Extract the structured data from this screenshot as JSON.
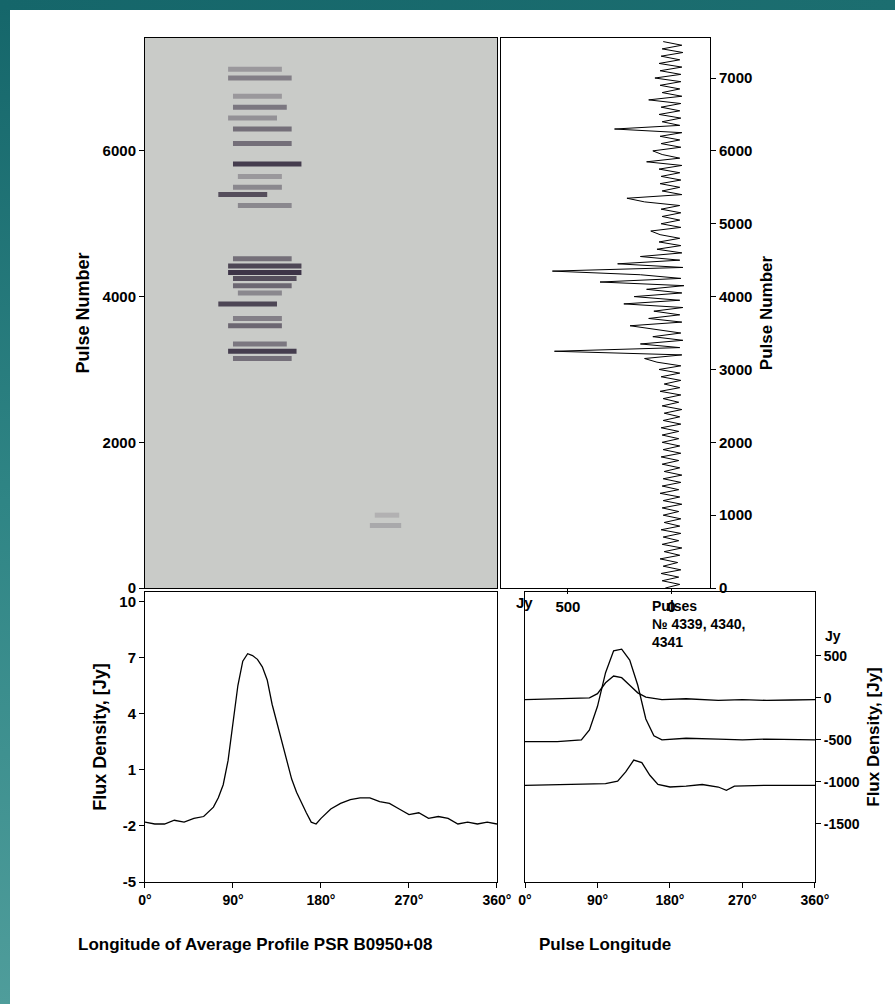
{
  "chart_data": [
    {
      "type": "pulse_stack",
      "ylabel": "Pulse Number",
      "xlim": [
        0,
        360
      ],
      "ylim": [
        0,
        7550
      ],
      "yticks": [
        0,
        2000,
        4000,
        6000
      ],
      "tick_labels": "y",
      "color": "#2e2438",
      "streaks": [
        {
          "pulse": 7120,
          "from": 85,
          "to": 140,
          "intensity": 0.3
        },
        {
          "pulse": 7000,
          "from": 85,
          "to": 150,
          "intensity": 0.45
        },
        {
          "pulse": 6750,
          "from": 90,
          "to": 140,
          "intensity": 0.3
        },
        {
          "pulse": 6600,
          "from": 90,
          "to": 145,
          "intensity": 0.5
        },
        {
          "pulse": 6450,
          "from": 85,
          "to": 135,
          "intensity": 0.35
        },
        {
          "pulse": 6300,
          "from": 90,
          "to": 150,
          "intensity": 0.55
        },
        {
          "pulse": 6100,
          "from": 90,
          "to": 150,
          "intensity": 0.55
        },
        {
          "pulse": 5820,
          "from": 90,
          "to": 160,
          "intensity": 0.85
        },
        {
          "pulse": 5650,
          "from": 95,
          "to": 140,
          "intensity": 0.3
        },
        {
          "pulse": 5500,
          "from": 90,
          "to": 140,
          "intensity": 0.4
        },
        {
          "pulse": 5400,
          "from": 75,
          "to": 125,
          "intensity": 0.75
        },
        {
          "pulse": 5250,
          "from": 95,
          "to": 150,
          "intensity": 0.4
        },
        {
          "pulse": 4520,
          "from": 90,
          "to": 150,
          "intensity": 0.55
        },
        {
          "pulse": 4420,
          "from": 85,
          "to": 160,
          "intensity": 0.8
        },
        {
          "pulse": 4330,
          "from": 85,
          "to": 160,
          "intensity": 0.9
        },
        {
          "pulse": 4250,
          "from": 90,
          "to": 155,
          "intensity": 0.75
        },
        {
          "pulse": 4150,
          "from": 90,
          "to": 150,
          "intensity": 0.6
        },
        {
          "pulse": 4050,
          "from": 95,
          "to": 140,
          "intensity": 0.4
        },
        {
          "pulse": 3900,
          "from": 75,
          "to": 135,
          "intensity": 0.8
        },
        {
          "pulse": 3700,
          "from": 90,
          "to": 140,
          "intensity": 0.45
        },
        {
          "pulse": 3600,
          "from": 85,
          "to": 140,
          "intensity": 0.6
        },
        {
          "pulse": 3350,
          "from": 90,
          "to": 145,
          "intensity": 0.5
        },
        {
          "pulse": 3250,
          "from": 85,
          "to": 155,
          "intensity": 0.85
        },
        {
          "pulse": 3150,
          "from": 90,
          "to": 150,
          "intensity": 0.55
        },
        {
          "pulse": 1000,
          "from": 235,
          "to": 260,
          "intensity": 0.15
        },
        {
          "pulse": 860,
          "from": 230,
          "to": 262,
          "intensity": 0.2
        }
      ]
    },
    {
      "type": "line",
      "orientation": "horizontal",
      "ylabel": "Pulse Number",
      "xlabel": "Jy",
      "xlim": [
        823,
        -186
      ],
      "xticks": [
        500,
        0
      ],
      "ylim": [
        0,
        7550
      ],
      "yticks": [
        0,
        1000,
        2000,
        3000,
        4000,
        5000,
        6000,
        7000
      ],
      "color": "#000000",
      "pulse_numbers": [
        0,
        50,
        100,
        150,
        200,
        250,
        300,
        350,
        400,
        450,
        500,
        550,
        600,
        650,
        700,
        750,
        800,
        850,
        900,
        950,
        1000,
        1050,
        1100,
        1150,
        1200,
        1250,
        1300,
        1350,
        1400,
        1450,
        1500,
        1550,
        1600,
        1650,
        1700,
        1750,
        1800,
        1850,
        1900,
        1950,
        2000,
        2050,
        2100,
        2150,
        2200,
        2250,
        2300,
        2350,
        2400,
        2450,
        2500,
        2550,
        2600,
        2650,
        2700,
        2750,
        2800,
        2850,
        2900,
        2950,
        3000,
        3050,
        3100,
        3150,
        3200,
        3250,
        3300,
        3350,
        3400,
        3450,
        3500,
        3550,
        3600,
        3650,
        3700,
        3750,
        3800,
        3850,
        3900,
        3950,
        4000,
        4050,
        4100,
        4150,
        4200,
        4250,
        4300,
        4350,
        4400,
        4450,
        4500,
        4550,
        4600,
        4650,
        4700,
        4750,
        4800,
        4850,
        4900,
        4950,
        5000,
        5050,
        5100,
        5150,
        5200,
        5250,
        5300,
        5350,
        5400,
        5450,
        5500,
        5550,
        5600,
        5650,
        5700,
        5750,
        5800,
        5850,
        5900,
        5950,
        6000,
        6050,
        6100,
        6150,
        6200,
        6250,
        6300,
        6350,
        6400,
        6450,
        6500,
        6550,
        6600,
        6650,
        6700,
        6750,
        6800,
        6850,
        6900,
        6950,
        7000,
        7050,
        7100,
        7150,
        7200,
        7250,
        7300,
        7350,
        7400,
        7450,
        7500
      ],
      "values": [
        30,
        -40,
        45,
        -35,
        50,
        -45,
        40,
        -30,
        55,
        -40,
        35,
        -50,
        45,
        -35,
        40,
        -45,
        50,
        -40,
        35,
        -45,
        40,
        -35,
        45,
        -50,
        40,
        -40,
        55,
        -35,
        45,
        -45,
        40,
        -50,
        35,
        -40,
        45,
        -35,
        50,
        -45,
        40,
        -40,
        45,
        -35,
        45,
        -35,
        50,
        -45,
        40,
        -40,
        35,
        -50,
        45,
        -35,
        40,
        -45,
        55,
        -40,
        35,
        -45,
        50,
        -40,
        60,
        -45,
        70,
        130,
        -50,
        565,
        -40,
        150,
        -55,
        90,
        -45,
        80,
        200,
        -50,
        110,
        -40,
        85,
        -55,
        230,
        -40,
        180,
        -50,
        120,
        -60,
        345,
        -45,
        150,
        575,
        -55,
        260,
        -40,
        150,
        -50,
        70,
        -45,
        60,
        -40,
        55,
        100,
        -45,
        50,
        -40,
        45,
        -45,
        50,
        -40,
        130,
        215,
        -50,
        45,
        -40,
        55,
        -45,
        50,
        -40,
        60,
        -50,
        120,
        -40,
        45,
        90,
        -45,
        50,
        -40,
        55,
        -50,
        275,
        -40,
        45,
        -45,
        60,
        -40,
        50,
        -45,
        110,
        -50,
        45,
        -40,
        55,
        -45,
        80,
        -45,
        55,
        -50,
        60,
        -40,
        50,
        -55,
        45,
        -50,
        40
      ]
    },
    {
      "type": "line",
      "xlabel": "Longitude of Average Profile PSR B0950+08",
      "ylabel": "Flux Density, [Jy]",
      "xlim": [
        0,
        360
      ],
      "xticks": [
        {
          "value": 0,
          "label": "0°"
        },
        {
          "value": 90,
          "label": "90°"
        },
        {
          "value": 180,
          "label": "180°"
        },
        {
          "value": 270,
          "label": "270°"
        },
        {
          "value": 360,
          "label": "360°"
        }
      ],
      "ylim": [
        -5,
        10.5
      ],
      "yticks": [
        -5,
        -2,
        1,
        4,
        7,
        10
      ],
      "color": "#000000",
      "x": [
        0,
        10,
        20,
        30,
        40,
        50,
        60,
        70,
        75,
        80,
        85,
        90,
        95,
        100,
        105,
        110,
        115,
        120,
        125,
        130,
        135,
        140,
        145,
        150,
        155,
        160,
        165,
        170,
        175,
        180,
        190,
        200,
        210,
        220,
        230,
        240,
        250,
        260,
        270,
        280,
        290,
        300,
        310,
        320,
        330,
        340,
        350,
        360
      ],
      "values": [
        -1.8,
        -1.9,
        -1.9,
        -1.7,
        -1.8,
        -1.6,
        -1.5,
        -1.0,
        -0.5,
        0.2,
        1.5,
        3.5,
        5.5,
        6.8,
        7.2,
        7.1,
        6.9,
        6.5,
        5.8,
        4.5,
        3.5,
        2.5,
        1.5,
        0.5,
        -0.2,
        -0.8,
        -1.3,
        -1.8,
        -1.9,
        -1.6,
        -1.1,
        -0.8,
        -0.6,
        -0.5,
        -0.5,
        -0.7,
        -0.8,
        -1.1,
        -1.4,
        -1.3,
        -1.6,
        -1.5,
        -1.6,
        -1.9,
        -1.8,
        -1.9,
        -1.8,
        -1.9
      ]
    },
    {
      "type": "line",
      "xlabel": "Pulse Longitude",
      "ylabel": "Flux Density, [Jy]",
      "y_unit": "Jy",
      "annotation": [
        "Pulses",
        "№ 4339, 4340,",
        "4341"
      ],
      "xlim": [
        0,
        360
      ],
      "xticks": [
        {
          "value": 0,
          "label": "0°"
        },
        {
          "value": 90,
          "label": "90°"
        },
        {
          "value": 180,
          "label": "180°"
        },
        {
          "value": 270,
          "label": "270°"
        },
        {
          "value": 360,
          "label": "360°"
        }
      ],
      "ylim": [
        -2190,
        1260
      ],
      "yticks": [
        -1500,
        -1000,
        -500,
        0,
        500
      ],
      "series": [
        {
          "color": "#000000",
          "x": [
            0,
            30,
            60,
            80,
            90,
            100,
            110,
            120,
            130,
            140,
            150,
            170,
            200,
            240,
            270,
            300,
            330,
            360
          ],
          "values": [
            -20,
            -15,
            -10,
            0,
            50,
            180,
            260,
            240,
            150,
            60,
            10,
            -20,
            -10,
            -30,
            -20,
            -30,
            -25,
            -20
          ]
        },
        {
          "color": "#000000",
          "x": [
            0,
            40,
            70,
            80,
            90,
            100,
            110,
            120,
            130,
            140,
            150,
            160,
            170,
            200,
            240,
            270,
            300,
            360
          ],
          "values": [
            -520,
            -520,
            -500,
            -380,
            -100,
            300,
            560,
            580,
            450,
            150,
            -250,
            -450,
            -500,
            -480,
            -490,
            -500,
            -490,
            -500
          ]
        },
        {
          "color": "#000000",
          "x": [
            0,
            60,
            100,
            115,
            125,
            135,
            145,
            155,
            165,
            180,
            200,
            220,
            240,
            250,
            260,
            300,
            360
          ],
          "values": [
            -1040,
            -1030,
            -1020,
            -990,
            -880,
            -740,
            -770,
            -920,
            -1030,
            -1060,
            -1050,
            -1030,
            -1060,
            -1100,
            -1050,
            -1040,
            -1040
          ]
        }
      ]
    }
  ]
}
